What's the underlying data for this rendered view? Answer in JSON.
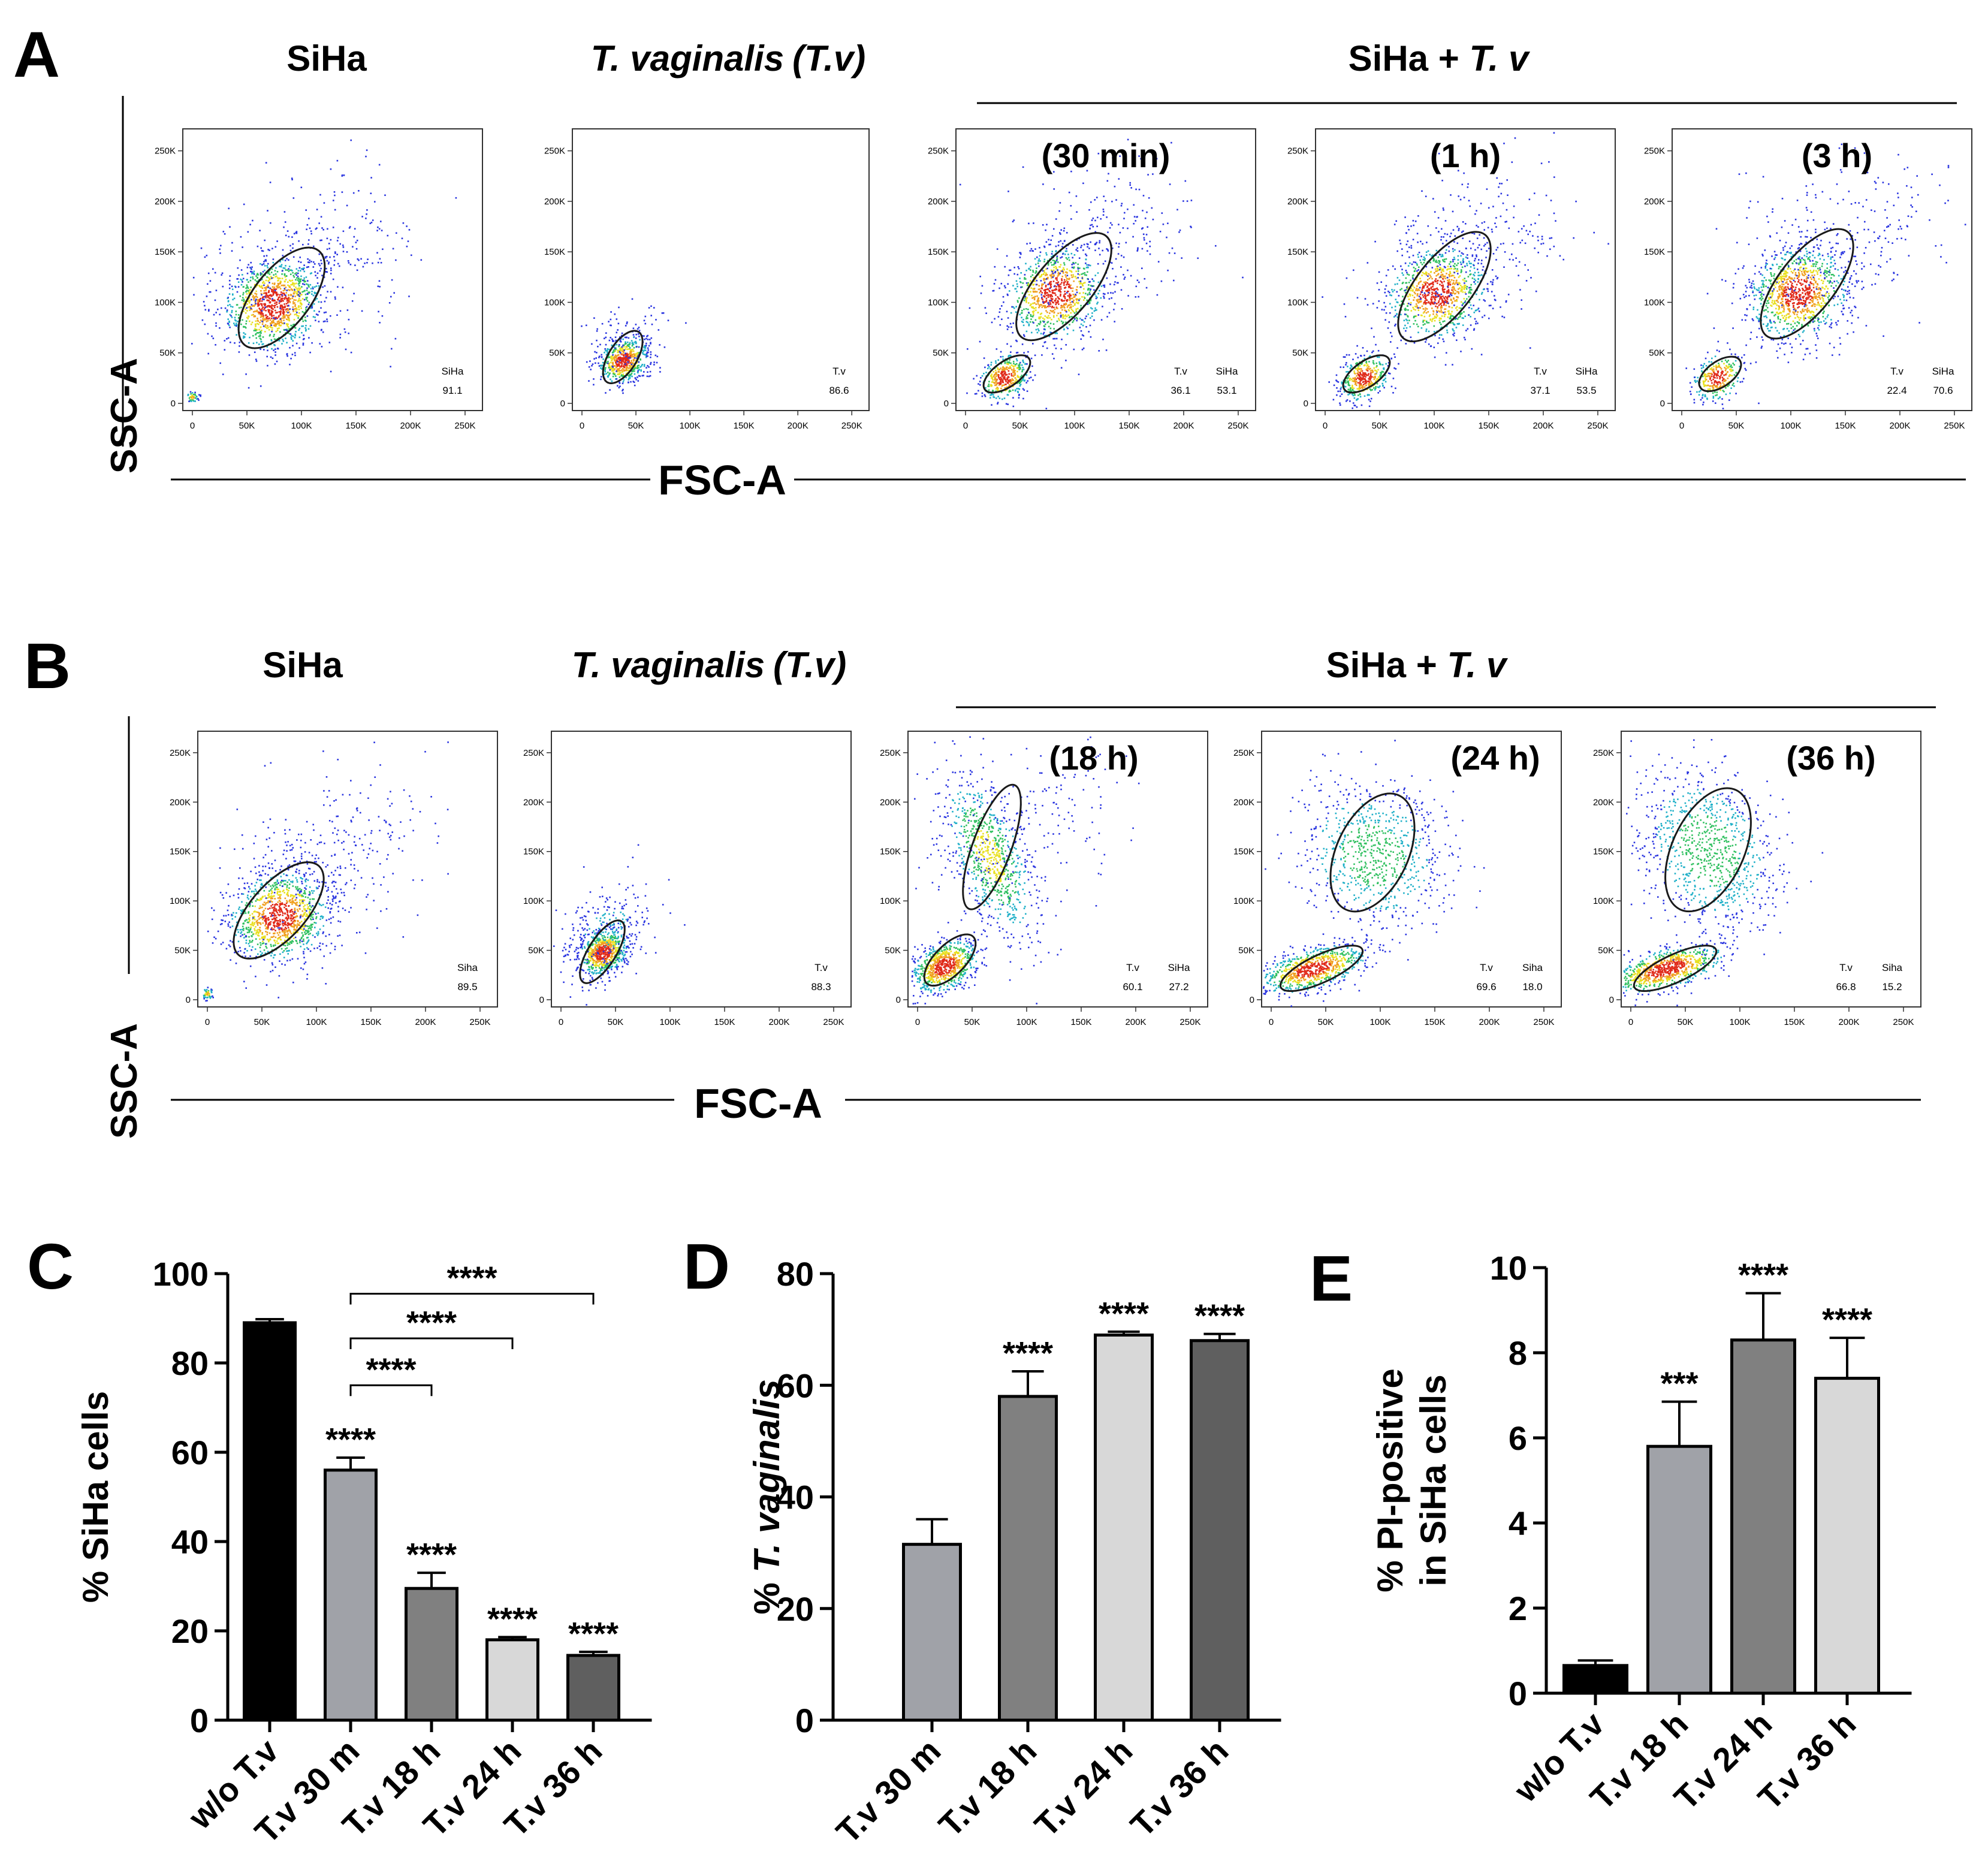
{
  "colors": {
    "axis": "#000000",
    "gate": "#1a1a1a",
    "bar_black": "#000000",
    "bar_light": "#a0a2a8",
    "bar_mid": "#808080",
    "bar_pale": "#d8d8d8",
    "bar_dark": "#5f5f5f"
  },
  "flow_common": {
    "ytick_labels": [
      "250K",
      "200K",
      "150K",
      "100K",
      "50K",
      "0"
    ],
    "xtick_labels": [
      "0",
      "50K",
      "100K",
      "150K",
      "200K",
      "250K"
    ],
    "xlabel": "FSC-A",
    "ylabel": "SSC-A"
  },
  "panel_a": {
    "letter": "A",
    "titles": {
      "siha": "SiHa",
      "tv_plain": "T. vaginalis",
      "tv_abbr": "(T.v)",
      "mix_prefix": "SiHa + ",
      "mix_italic": "T. v"
    },
    "plots": [
      {
        "time": "",
        "gates": [
          {
            "label": "SiHa",
            "value": "91.1"
          }
        ]
      },
      {
        "time": "",
        "gates": [
          {
            "label": "T.v",
            "value": "86.6"
          }
        ]
      },
      {
        "time": "(30 min)",
        "gates": [
          {
            "label": "T.v",
            "value": "36.1"
          },
          {
            "label": "SiHa",
            "value": "53.1"
          }
        ]
      },
      {
        "time": "(1 h)",
        "gates": [
          {
            "label": "T.v",
            "value": "37.1"
          },
          {
            "label": "SiHa",
            "value": "53.5"
          }
        ]
      },
      {
        "time": "(3 h)",
        "gates": [
          {
            "label": "T.v",
            "value": "22.4"
          },
          {
            "label": "SiHa",
            "value": "70.6"
          }
        ]
      }
    ]
  },
  "panel_b": {
    "letter": "B",
    "titles": {
      "siha": "SiHa",
      "tv_plain": "T. vaginalis",
      "tv_abbr": "(T.v)",
      "mix_prefix": "SiHa + ",
      "mix_italic": "T. v"
    },
    "plots": [
      {
        "time": "",
        "gates": [
          {
            "label": "Siha",
            "value": "89.5"
          }
        ]
      },
      {
        "time": "",
        "gates": [
          {
            "label": "T.v",
            "value": "88.3"
          }
        ]
      },
      {
        "time": "(18 h)",
        "gates": [
          {
            "label": "T.v",
            "value": "60.1"
          },
          {
            "label": "SiHa",
            "value": "27.2"
          }
        ]
      },
      {
        "time": "(24 h)",
        "gates": [
          {
            "label": "T.v",
            "value": "69.6"
          },
          {
            "label": "Siha",
            "value": "18.0"
          }
        ]
      },
      {
        "time": "(36 h)",
        "gates": [
          {
            "label": "T.v",
            "value": "66.8"
          },
          {
            "label": "Siha",
            "value": "15.2"
          }
        ]
      }
    ]
  },
  "chart_data": [
    {
      "panel": "C",
      "type": "bar",
      "ylabel": "% SiHa cells",
      "ylim": [
        0,
        100
      ],
      "yticks": [
        0,
        20,
        40,
        60,
        80,
        100
      ],
      "categories": [
        "w/o T.v",
        "T.v 30 m",
        "T.v 18 h",
        "T.v 24 h",
        "T.v 36 h"
      ],
      "values": [
        89,
        56,
        29.5,
        18,
        14.5
      ],
      "errors": [
        0.8,
        2.8,
        3.5,
        0.6,
        0.8
      ],
      "colors": [
        "#000000",
        "#a0a2a8",
        "#808080",
        "#d8d8d8",
        "#5f5f5f"
      ],
      "sig": [
        "",
        "****",
        "****",
        "****",
        "****"
      ],
      "brackets": [
        {
          "from": 1,
          "to": 2,
          "y": 75,
          "label": "****"
        },
        {
          "from": 1,
          "to": 3,
          "y": 85.5,
          "label": "****"
        },
        {
          "from": 1,
          "to": 4,
          "y": 95.5,
          "label": "****"
        }
      ]
    },
    {
      "panel": "D",
      "type": "bar",
      "ylabel": "% T. vaginalis",
      "ylim": [
        0,
        80
      ],
      "yticks": [
        0,
        20,
        40,
        60,
        80
      ],
      "categories": [
        "T.v 30 m",
        "T.v 18 h",
        "T.v 24 h",
        "T.v 36 h"
      ],
      "values": [
        31.5,
        58,
        69,
        68
      ],
      "errors": [
        4.5,
        4.5,
        0.6,
        1.2
      ],
      "colors": [
        "#a0a2a8",
        "#808080",
        "#d8d8d8",
        "#5f5f5f"
      ],
      "sig": [
        "",
        "****",
        "****",
        "****"
      ]
    },
    {
      "panel": "E",
      "type": "bar",
      "ylabel": "% PI-positive in SiHa cells",
      "ylabel_lines": [
        "% PI-positive",
        "in SiHa cells"
      ],
      "ylim": [
        0,
        10
      ],
      "yticks": [
        0,
        2,
        4,
        6,
        8,
        10
      ],
      "categories": [
        "w/o T.v",
        "T.v 18 h",
        "T.v 24 h",
        "T.v 36 h"
      ],
      "values": [
        0.65,
        5.8,
        8.3,
        7.4
      ],
      "errors": [
        0.12,
        1.05,
        1.1,
        0.95
      ],
      "colors": [
        "#000000",
        "#a0a2a8",
        "#808080",
        "#d8d8d8"
      ],
      "sig": [
        "",
        "***",
        "****",
        "****"
      ]
    }
  ]
}
